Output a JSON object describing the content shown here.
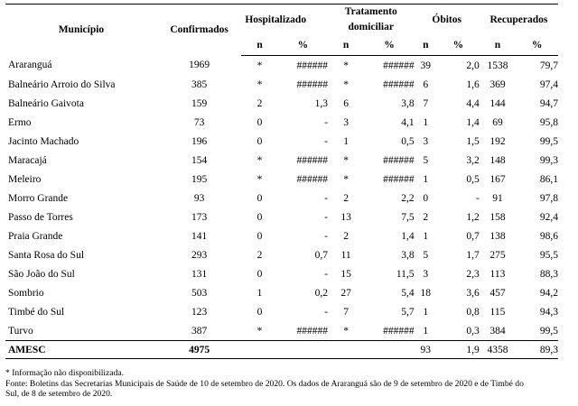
{
  "headers": {
    "municipio": "Município",
    "confirmados": "Confirmados",
    "hospitalizado": "Hospitalizado",
    "tratamento_line1": "Tratamento",
    "tratamento_line2": "domiciliar",
    "obitos": "Óbitos",
    "recuperados": "Recuperados",
    "n": "n",
    "pct": "%"
  },
  "rows": [
    {
      "municipio": "Araranguá",
      "confirmados": "1969",
      "hosp_n": "*",
      "hosp_pct": "######",
      "trat_n": "*",
      "trat_pct": "######",
      "obitos_n": "39",
      "obitos_pct": "2,0",
      "rec_n": "1538",
      "rec_pct": "79,7"
    },
    {
      "municipio": "Balneário Arroio do Silva",
      "confirmados": "385",
      "hosp_n": "*",
      "hosp_pct": "######",
      "trat_n": "*",
      "trat_pct": "######",
      "obitos_n": "6",
      "obitos_pct": "1,6",
      "rec_n": "369",
      "rec_pct": "97,4"
    },
    {
      "municipio": "Balneário Gaivota",
      "confirmados": "159",
      "hosp_n": "2",
      "hosp_pct": "1,3",
      "trat_n": "6",
      "trat_pct": "3,8",
      "obitos_n": "7",
      "obitos_pct": "4,4",
      "rec_n": "144",
      "rec_pct": "94,7"
    },
    {
      "municipio": "Ermo",
      "confirmados": "73",
      "hosp_n": "0",
      "hosp_pct": "-",
      "trat_n": "3",
      "trat_pct": "4,1",
      "obitos_n": "1",
      "obitos_pct": "1,4",
      "rec_n": "69",
      "rec_pct": "95,8"
    },
    {
      "municipio": "Jacinto Machado",
      "confirmados": "196",
      "hosp_n": "0",
      "hosp_pct": "-",
      "trat_n": "1",
      "trat_pct": "0,5",
      "obitos_n": "3",
      "obitos_pct": "1,5",
      "rec_n": "192",
      "rec_pct": "99,5"
    },
    {
      "municipio": "Maracajá",
      "confirmados": "154",
      "hosp_n": "*",
      "hosp_pct": "######",
      "trat_n": "*",
      "trat_pct": "######",
      "obitos_n": "5",
      "obitos_pct": "3,2",
      "rec_n": "148",
      "rec_pct": "99,3"
    },
    {
      "municipio": "Meleiro",
      "confirmados": "195",
      "hosp_n": "*",
      "hosp_pct": "######",
      "trat_n": "*",
      "trat_pct": "######",
      "obitos_n": "1",
      "obitos_pct": "0,5",
      "rec_n": "167",
      "rec_pct": "86,1"
    },
    {
      "municipio": "Morro Grande",
      "confirmados": "93",
      "hosp_n": "0",
      "hosp_pct": "-",
      "trat_n": "2",
      "trat_pct": "2,2",
      "obitos_n": "0",
      "obitos_pct": "-",
      "rec_n": "91",
      "rec_pct": "97,8"
    },
    {
      "municipio": "Passo de Torres",
      "confirmados": "173",
      "hosp_n": "0",
      "hosp_pct": "-",
      "trat_n": "13",
      "trat_pct": "7,5",
      "obitos_n": "2",
      "obitos_pct": "1,2",
      "rec_n": "158",
      "rec_pct": "92,4"
    },
    {
      "municipio": "Praia Grande",
      "confirmados": "141",
      "hosp_n": "0",
      "hosp_pct": "-",
      "trat_n": "2",
      "trat_pct": "1,4",
      "obitos_n": "1",
      "obitos_pct": "0,7",
      "rec_n": "138",
      "rec_pct": "98,6"
    },
    {
      "municipio": "Santa Rosa do Sul",
      "confirmados": "293",
      "hosp_n": "2",
      "hosp_pct": "0,7",
      "trat_n": "11",
      "trat_pct": "3,8",
      "obitos_n": "5",
      "obitos_pct": "1,7",
      "rec_n": "275",
      "rec_pct": "95,5"
    },
    {
      "municipio": "São João do Sul",
      "confirmados": "131",
      "hosp_n": "0",
      "hosp_pct": "-",
      "trat_n": "15",
      "trat_pct": "11,5",
      "obitos_n": "3",
      "obitos_pct": "2,3",
      "rec_n": "113",
      "rec_pct": "88,3"
    },
    {
      "municipio": "Sombrio",
      "confirmados": "503",
      "hosp_n": "1",
      "hosp_pct": "0,2",
      "trat_n": "27",
      "trat_pct": "5,4",
      "obitos_n": "18",
      "obitos_pct": "3,6",
      "rec_n": "457",
      "rec_pct": "94,2"
    },
    {
      "municipio": "Timbé do Sul",
      "confirmados": "123",
      "hosp_n": "0",
      "hosp_pct": "-",
      "trat_n": "7",
      "trat_pct": "5,7",
      "obitos_n": "1",
      "obitos_pct": "0,8",
      "rec_n": "115",
      "rec_pct": "94,3"
    },
    {
      "municipio": "Turvo",
      "confirmados": "387",
      "hosp_n": "*",
      "hosp_pct": "######",
      "trat_n": "*",
      "trat_pct": "######",
      "obitos_n": "1",
      "obitos_pct": "0,3",
      "rec_n": "384",
      "rec_pct": "99,5"
    }
  ],
  "total": {
    "municipio": "AMESC",
    "confirmados": "4975",
    "obitos_n": "93",
    "obitos_pct": "1,9",
    "rec_n": "4358",
    "rec_pct": "89,3"
  },
  "notes": {
    "asterisk": "* Informação não disponibilizada.",
    "fonte_line1": "Fonte: Boletins das Secretarias Municipais de Saúde de 10 de setembro de 2020. Os dados de Araranguá são de 9 de setembro de 2020 e de Timbé do",
    "fonte_line2": "Sul, de 8 de setembro de 2020."
  }
}
